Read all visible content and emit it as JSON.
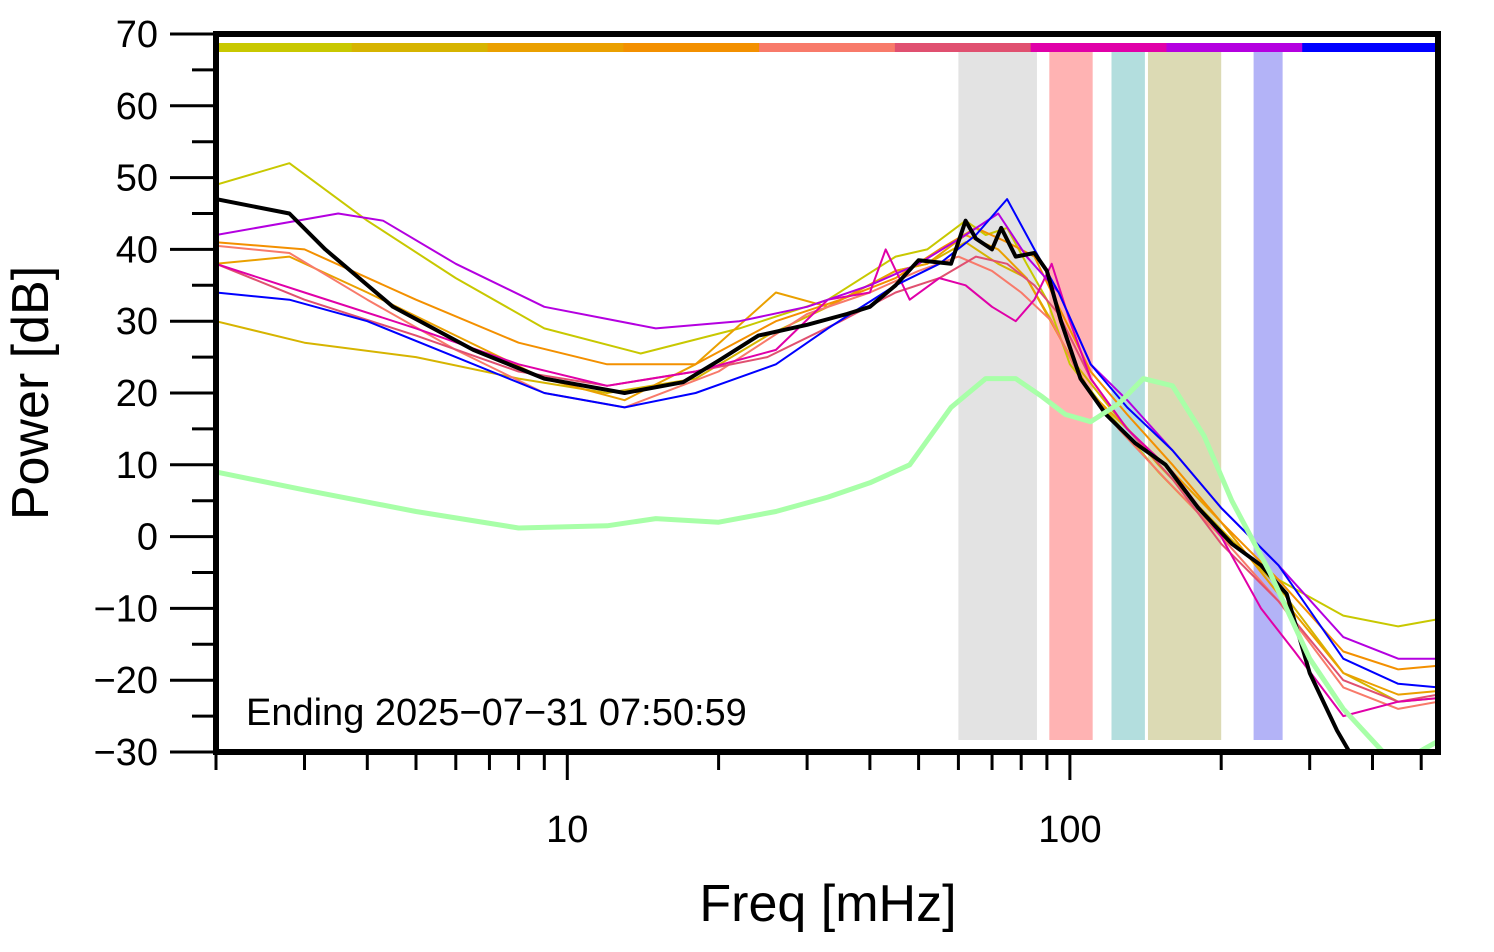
{
  "chart_data": {
    "type": "line",
    "xlabel": "Freq [mHz]",
    "ylabel": "Power [dB]",
    "xscale": "log",
    "xlim": [
      2,
      540
    ],
    "ylim": [
      -30,
      70
    ],
    "x_ticks_labeled": [
      "10",
      "100"
    ],
    "y_ticks_labeled": [
      "70",
      "60",
      "50",
      "40",
      "30",
      "20",
      "10",
      "0",
      "−10",
      "−20",
      "−30"
    ],
    "annotation": "Ending 2025−07−31 07:50:59",
    "grid": false,
    "shaded_bands": [
      {
        "x0": 60,
        "x1": 86,
        "color": "#e3e3e3"
      },
      {
        "x0": 91,
        "x1": 111,
        "color": "#ffb3b3"
      },
      {
        "x0": 121,
        "x1": 141,
        "color": "#b3dede"
      },
      {
        "x0": 143,
        "x1": 200,
        "color": "#dcdab4"
      },
      {
        "x0": 232,
        "x1": 265,
        "color": "#b3b3f7"
      }
    ],
    "top_color_bar": [
      "#c8c800",
      "#d6b400",
      "#eaa000",
      "#f39000",
      "#f87a6a",
      "#e05070",
      "#e000a8",
      "#b400e0",
      "#0000ff"
    ],
    "series": [
      {
        "color": "#c8c800",
        "width": 2,
        "x": [
          2,
          2.8,
          4,
          6,
          9,
          14,
          22,
          33,
          45,
          52,
          62,
          68,
          75,
          82,
          90,
          100,
          120,
          150,
          200,
          260,
          350,
          450,
          540
        ],
        "y": [
          49,
          52,
          44,
          36,
          29,
          25.5,
          29,
          33,
          39,
          40,
          44,
          42,
          43,
          38,
          33,
          24,
          17,
          9,
          0,
          -6,
          -11,
          -12.5,
          -11.5
        ]
      },
      {
        "color": "#d6b400",
        "width": 2,
        "x": [
          2,
          3,
          5,
          8,
          12,
          18,
          25,
          33,
          45,
          52,
          62,
          72,
          82,
          92,
          100,
          120,
          150,
          200,
          260,
          350,
          450,
          540
        ],
        "y": [
          30,
          27,
          25,
          22,
          20,
          22,
          28,
          32,
          37,
          38,
          41,
          38,
          36,
          30,
          25,
          18,
          10,
          1,
          -7,
          -19,
          -23,
          -22.5
        ]
      },
      {
        "color": "#eaa000",
        "width": 2,
        "x": [
          2,
          2.8,
          4,
          6,
          9,
          13,
          18,
          26,
          33,
          45,
          52,
          62,
          72,
          82,
          95,
          110,
          130,
          160,
          200,
          260,
          350,
          450,
          540
        ],
        "y": [
          38,
          39,
          34,
          28,
          22,
          19,
          24,
          34,
          32,
          37,
          38,
          42,
          40,
          36,
          28,
          20,
          15,
          9,
          2,
          -8,
          -19,
          -22,
          -21.5
        ]
      },
      {
        "color": "#f39000",
        "width": 2,
        "x": [
          2,
          3,
          5,
          8,
          12,
          18,
          26,
          35,
          45,
          55,
          65,
          75,
          85,
          95,
          110,
          130,
          160,
          200,
          260,
          350,
          450,
          540
        ],
        "y": [
          41,
          40,
          33,
          27,
          24,
          24,
          30,
          33,
          36,
          40,
          43,
          41,
          39,
          32,
          23,
          17,
          10,
          2,
          -6,
          -16,
          -18.5,
          -18
        ]
      },
      {
        "color": "#f87a6a",
        "width": 2,
        "x": [
          2,
          2.8,
          4,
          6,
          9,
          13,
          20,
          30,
          40,
          50,
          60,
          70,
          80,
          92,
          105,
          125,
          155,
          200,
          260,
          350,
          450,
          540
        ],
        "y": [
          40.5,
          39.5,
          33,
          26,
          20,
          18,
          23,
          31,
          34,
          37,
          39,
          37,
          34,
          30,
          22,
          15,
          8,
          0,
          -9,
          -21,
          -24,
          -23
        ]
      },
      {
        "color": "#e05070",
        "width": 2,
        "x": [
          2,
          3,
          5,
          8,
          12,
          18,
          25,
          35,
          45,
          55,
          65,
          75,
          85,
          95,
          110,
          130,
          160,
          200,
          260,
          350,
          450,
          540
        ],
        "y": [
          38,
          33,
          28,
          23,
          21,
          23,
          25,
          30,
          34,
          36,
          39,
          38,
          35,
          31,
          22,
          15,
          8,
          -1,
          -9,
          -20,
          -23,
          -22
        ]
      },
      {
        "color": "#e000a8",
        "width": 2,
        "x": [
          2,
          3,
          5,
          8,
          12,
          18,
          26,
          33,
          40,
          43,
          48,
          55,
          62,
          70,
          78,
          85,
          92,
          100,
          110,
          130,
          160,
          200,
          240,
          280,
          350,
          450,
          540
        ],
        "y": [
          38,
          34,
          29,
          24,
          21,
          23,
          26,
          33,
          34,
          40,
          33,
          36,
          35,
          32,
          30,
          33,
          38,
          30,
          22,
          15,
          9,
          0,
          -10,
          -16,
          -25,
          -23,
          -22.5
        ]
      },
      {
        "color": "#b400e0",
        "width": 2,
        "x": [
          2,
          3.5,
          4.3,
          6,
          9,
          15,
          22,
          30,
          40,
          50,
          62,
          72,
          82,
          95,
          110,
          130,
          160,
          200,
          260,
          350,
          450,
          540
        ],
        "y": [
          42,
          45,
          44,
          38,
          32,
          29,
          30,
          32,
          35,
          38,
          42,
          45,
          39,
          34,
          24,
          19,
          12,
          4,
          -4,
          -14,
          -17,
          -17
        ]
      },
      {
        "color": "#0000ff",
        "width": 2,
        "x": [
          2,
          2.8,
          4,
          6,
          9,
          13,
          18,
          26,
          33,
          45,
          55,
          65,
          75,
          85,
          95,
          110,
          130,
          160,
          200,
          260,
          350,
          450,
          540
        ],
        "y": [
          34,
          33,
          30,
          25,
          20,
          18,
          20,
          24,
          29,
          35,
          38,
          42,
          47,
          40,
          34,
          24,
          18,
          12,
          4,
          -4,
          -17,
          -20.5,
          -21
        ]
      },
      {
        "color": "#000000",
        "width": 4,
        "x": [
          2,
          2.8,
          3.3,
          4.5,
          6.5,
          9,
          13,
          17,
          20,
          24,
          30,
          36,
          40,
          45,
          50,
          58,
          62,
          65,
          70,
          73,
          78,
          85,
          90,
          96,
          105,
          118,
          135,
          155,
          180,
          210,
          240,
          270,
          300,
          340,
          360
        ],
        "y": [
          47,
          45,
          40,
          32,
          26,
          22,
          20,
          21.5,
          24.5,
          28,
          29.5,
          31,
          32,
          35,
          38.5,
          38,
          44,
          41.5,
          40,
          43,
          39,
          39.5,
          37,
          30,
          22,
          17,
          13,
          10,
          4,
          -1,
          -4,
          -8,
          -19,
          -27,
          -30
        ]
      },
      {
        "color": "#a8ffa8",
        "width": 5,
        "x": [
          2,
          3,
          5,
          8,
          12,
          15,
          20,
          26,
          33,
          40,
          48,
          58,
          68,
          78,
          88,
          98,
          110,
          125,
          140,
          160,
          185,
          210,
          250,
          300,
          350,
          420,
          480,
          540
        ],
        "y": [
          9,
          6.5,
          3.5,
          1.2,
          1.5,
          2.5,
          2,
          3.5,
          5.5,
          7.5,
          10,
          18,
          22,
          22,
          19.5,
          17,
          16,
          18.5,
          22,
          21,
          14,
          5,
          -5,
          -17,
          -24,
          -30,
          -30.5,
          -28.5
        ]
      }
    ]
  }
}
